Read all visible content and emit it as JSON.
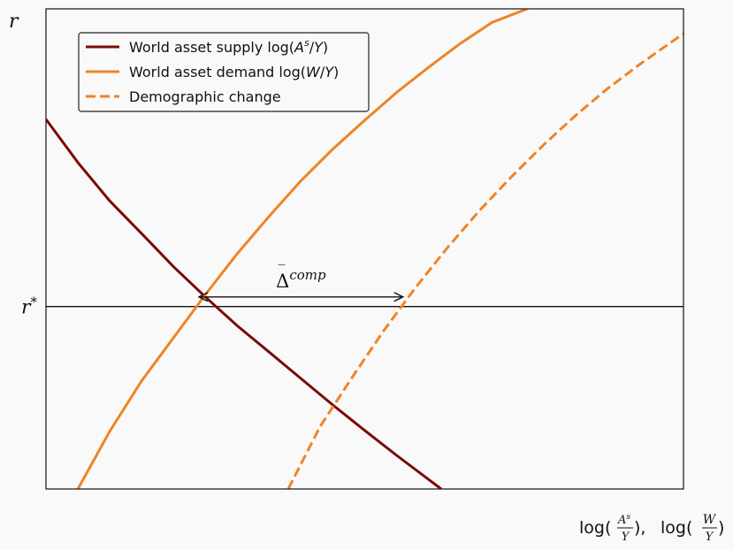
{
  "chart_data": {
    "type": "line",
    "title": "",
    "y_axis_label": "r",
    "x_axis_label": {
      "prefix": "log(",
      "a_num": "A",
      "a_sup": "s",
      "a_den": "Y",
      "separator": "),",
      "prefix2": "log(",
      "w_num": "W",
      "w_den": "Y",
      "suffix": ")"
    },
    "equilibrium_label": "r*",
    "equilibrium_label_base": "r",
    "equilibrium_label_sup": "*",
    "equilibrium_y": 0.38,
    "xlim": [
      0,
      1
    ],
    "ylim": [
      0,
      1
    ],
    "grid": false,
    "ticks": false,
    "legend": {
      "placement": "top-left",
      "entries": [
        {
          "key": "supply",
          "text_main": "World asset supply log(",
          "num": "A",
          "sup": "s",
          "slash": "/",
          "den": "Y",
          "close": ")"
        },
        {
          "key": "demand",
          "text_main": "World asset demand log(",
          "num": "W",
          "sup": "",
          "slash": "/",
          "den": "Y",
          "close": ")"
        },
        {
          "key": "change",
          "text_main": "Demographic change",
          "num": "",
          "sup": "",
          "slash": "",
          "den": "",
          "close": ""
        }
      ]
    },
    "series": [
      {
        "key": "supply",
        "style": "solid",
        "color": "#7b0a0a",
        "x": [
          0.0,
          0.05,
          0.1,
          0.15,
          0.2,
          0.25,
          0.3,
          0.35,
          0.4,
          0.45,
          0.5,
          0.55,
          0.62
        ],
        "y": [
          0.77,
          0.68,
          0.6,
          0.532,
          0.463,
          0.4,
          0.34,
          0.285,
          0.23,
          0.175,
          0.122,
          0.07,
          0.0
        ]
      },
      {
        "key": "demand",
        "style": "solid",
        "color": "#ee8426",
        "x": [
          0.05,
          0.1,
          0.15,
          0.2,
          0.25,
          0.3,
          0.35,
          0.4,
          0.45,
          0.5,
          0.55,
          0.6,
          0.65,
          0.7,
          0.755
        ],
        "y": [
          0.0,
          0.12,
          0.225,
          0.315,
          0.405,
          0.49,
          0.568,
          0.642,
          0.708,
          0.768,
          0.826,
          0.878,
          0.928,
          0.972,
          1.0
        ]
      },
      {
        "key": "change",
        "style": "dashed",
        "color": "#ee8426",
        "x": [
          0.38,
          0.43,
          0.48,
          0.53,
          0.58,
          0.63,
          0.68,
          0.73,
          0.78,
          0.83,
          0.88,
          0.93,
          0.98,
          1.0
        ],
        "y": [
          0.0,
          0.13,
          0.232,
          0.33,
          0.42,
          0.503,
          0.58,
          0.65,
          0.716,
          0.777,
          0.833,
          0.883,
          0.93,
          0.948
        ]
      }
    ],
    "annotation": {
      "symbol": "Δ",
      "bar": "‾",
      "sup": "comp",
      "x_start": 0.24,
      "x_end": 0.56,
      "y": 0.4
    }
  }
}
